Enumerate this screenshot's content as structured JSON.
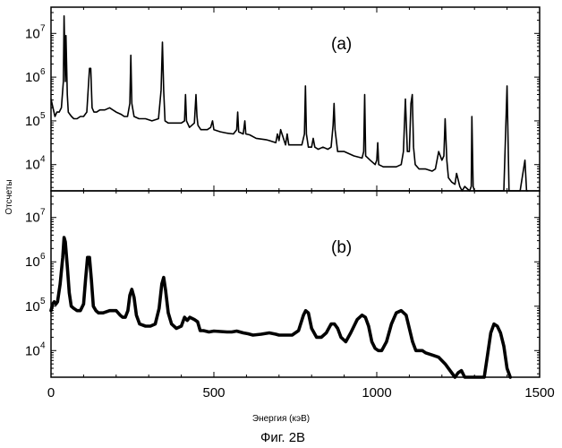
{
  "chart_data": [
    {
      "type": "line",
      "panel_label": "(a)",
      "xlim": [
        0,
        1500
      ],
      "ylim_log10": [
        3.4,
        7.6
      ],
      "y_scale": "log",
      "grid": false,
      "series": [
        {
          "x": [
            0,
            6,
            12,
            18,
            25,
            32,
            38,
            40,
            44,
            46,
            50,
            53,
            58,
            63,
            70,
            80,
            90,
            100,
            110,
            118,
            122,
            126,
            132,
            140,
            150,
            165,
            180,
            200,
            215,
            225,
            235,
            242,
            245,
            248,
            255,
            270,
            290,
            310,
            330,
            338,
            342,
            346,
            350,
            360,
            380,
            400,
            410,
            413,
            416,
            425,
            440,
            445,
            448,
            451,
            460,
            480,
            490,
            496,
            500,
            520,
            540,
            560,
            570,
            573,
            576,
            590,
            595,
            598,
            610,
            630,
            650,
            660,
            670,
            690,
            695,
            700,
            705,
            720,
            725,
            730,
            750,
            770,
            778,
            781,
            784,
            790,
            800,
            805,
            810,
            820,
            835,
            850,
            860,
            866,
            869,
            872,
            880,
            900,
            930,
            955,
            960,
            963,
            966,
            980,
            995,
            1000,
            1003,
            1006,
            1020,
            1040,
            1060,
            1075,
            1082,
            1088,
            1094,
            1100,
            1105,
            1109,
            1113,
            1118,
            1130,
            1150,
            1170,
            1180,
            1190,
            1200,
            1206,
            1210,
            1215,
            1220,
            1230,
            1240,
            1245,
            1255,
            1262,
            1270,
            1285,
            1290,
            1292,
            1296,
            1300,
            1304,
            1310,
            1330,
            1350,
            1390,
            1400,
            1406,
            1410,
            1416,
            1420,
            1440,
            1455,
            1460,
            1465,
            1470
          ],
          "log10_counts": [
            5.5,
            5.3,
            5.1,
            5.2,
            5.2,
            5.3,
            5.9,
            7.4,
            5.9,
            6.95,
            5.6,
            5.2,
            5.15,
            5.1,
            5.05,
            5.05,
            5.1,
            5.1,
            5.2,
            6.2,
            6.2,
            5.3,
            5.2,
            5.2,
            5.25,
            5.25,
            5.3,
            5.2,
            5.15,
            5.1,
            5.1,
            5.4,
            6.5,
            5.4,
            5.1,
            5.05,
            5.05,
            5.0,
            5.05,
            5.7,
            6.8,
            5.7,
            5.0,
            4.95,
            4.95,
            4.95,
            5.0,
            5.6,
            5.0,
            4.85,
            4.95,
            5.6,
            5.1,
            4.9,
            4.8,
            4.8,
            4.85,
            5.0,
            4.8,
            4.75,
            4.72,
            4.7,
            4.8,
            5.2,
            4.75,
            4.7,
            5.0,
            4.7,
            4.68,
            4.6,
            4.58,
            4.57,
            4.55,
            4.5,
            4.7,
            4.55,
            4.8,
            4.45,
            4.7,
            4.45,
            4.45,
            4.45,
            4.7,
            5.8,
            4.7,
            4.4,
            4.4,
            4.6,
            4.4,
            4.35,
            4.4,
            4.35,
            4.4,
            4.9,
            5.4,
            4.8,
            4.3,
            4.3,
            4.2,
            4.15,
            4.3,
            5.6,
            4.2,
            4.1,
            4.0,
            4.1,
            4.5,
            4.0,
            3.95,
            3.95,
            3.95,
            4.0,
            4.3,
            5.5,
            4.3,
            4.3,
            5.4,
            5.6,
            4.4,
            4.0,
            3.9,
            3.9,
            3.85,
            3.9,
            4.3,
            4.1,
            4.2,
            5.05,
            4.1,
            3.7,
            3.6,
            3.55,
            3.8,
            3.5,
            3.4,
            3.5,
            3.3,
            3.5,
            5.1,
            3.5,
            3.3,
            3.3,
            3.3,
            3.3,
            3.3,
            3.3,
            5.8,
            3.3,
            3.3,
            3.3,
            3.3,
            3.3,
            4.1,
            3.3,
            3.3
          ]
        }
      ]
    },
    {
      "type": "line",
      "panel_label": "(b)",
      "xlim": [
        0,
        1500
      ],
      "ylim_log10": [
        3.4,
        7.6
      ],
      "y_scale": "log",
      "grid": false,
      "x_ticks": [
        0,
        500,
        1000,
        1500
      ],
      "series": [
        {
          "x": [
            0,
            5,
            10,
            15,
            20,
            28,
            36,
            40,
            44,
            50,
            56,
            62,
            70,
            80,
            90,
            100,
            106,
            112,
            118,
            124,
            130,
            138,
            146,
            160,
            180,
            200,
            212,
            220,
            228,
            236,
            242,
            248,
            255,
            262,
            272,
            290,
            305,
            320,
            332,
            340,
            346,
            352,
            360,
            370,
            385,
            400,
            410,
            418,
            426,
            440,
            450,
            458,
            468,
            485,
            500,
            520,
            540,
            555,
            570,
            580,
            590,
            605,
            620,
            645,
            670,
            690,
            700,
            710,
            725,
            740,
            760,
            775,
            782,
            790,
            800,
            815,
            830,
            845,
            860,
            870,
            880,
            890,
            905,
            920,
            940,
            955,
            965,
            975,
            985,
            995,
            1005,
            1015,
            1030,
            1045,
            1060,
            1075,
            1090,
            1100,
            1110,
            1120,
            1130,
            1140,
            1150,
            1170,
            1190,
            1210,
            1230,
            1240,
            1250,
            1260,
            1270,
            1280,
            1290,
            1300,
            1310,
            1330,
            1340,
            1350,
            1360,
            1370,
            1380,
            1390,
            1400,
            1410,
            1420,
            1430,
            1440,
            1445
          ],
          "log10_counts": [
            4.9,
            5.05,
            5.1,
            5.05,
            5.1,
            5.5,
            6.1,
            6.55,
            6.45,
            5.9,
            5.3,
            5.0,
            4.95,
            4.9,
            4.9,
            5.05,
            5.6,
            6.1,
            6.1,
            5.6,
            5.0,
            4.9,
            4.85,
            4.85,
            4.9,
            4.9,
            4.8,
            4.75,
            4.75,
            4.9,
            5.25,
            5.38,
            5.2,
            4.8,
            4.6,
            4.55,
            4.55,
            4.6,
            4.95,
            5.5,
            5.65,
            5.35,
            4.85,
            4.6,
            4.5,
            4.55,
            4.75,
            4.68,
            4.75,
            4.7,
            4.65,
            4.45,
            4.45,
            4.42,
            4.44,
            4.43,
            4.42,
            4.42,
            4.44,
            4.42,
            4.4,
            4.38,
            4.35,
            4.37,
            4.4,
            4.37,
            4.35,
            4.35,
            4.35,
            4.35,
            4.45,
            4.8,
            4.9,
            4.85,
            4.5,
            4.3,
            4.3,
            4.4,
            4.6,
            4.6,
            4.5,
            4.3,
            4.2,
            4.4,
            4.7,
            4.8,
            4.75,
            4.55,
            4.2,
            4.05,
            4.0,
            4.0,
            4.2,
            4.6,
            4.85,
            4.9,
            4.8,
            4.5,
            4.2,
            4.0,
            4.0,
            4.0,
            3.95,
            3.9,
            3.85,
            3.7,
            3.5,
            3.4,
            3.5,
            3.55,
            3.4,
            3.1,
            2.8,
            2.8,
            2.9,
            3.3,
            3.9,
            4.4,
            4.6,
            4.55,
            4.4,
            4.1,
            3.6,
            3.0
          ]
        }
      ]
    }
  ],
  "shared": {
    "ylabel": "Отсчеты",
    "xlabel": "Энергия (кэВ)",
    "caption": "Фиг. 2В",
    "ytick_base": "10",
    "ytick_exponents": [
      4,
      5,
      6,
      7
    ],
    "xtick_labels": [
      "0",
      "500",
      "1000",
      "1500"
    ]
  }
}
